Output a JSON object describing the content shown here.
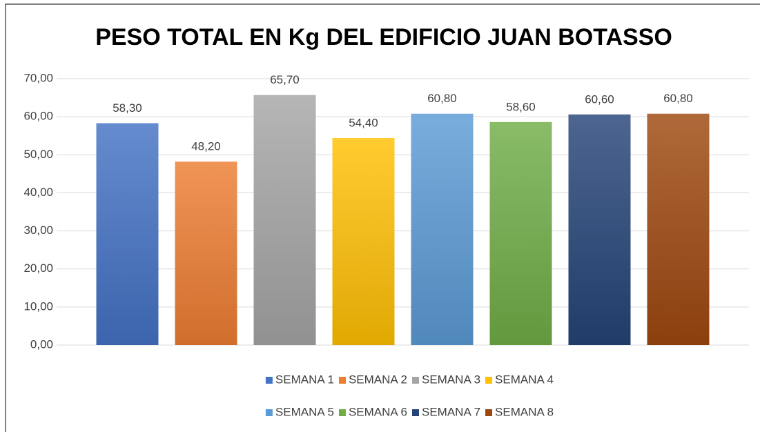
{
  "chart_data": {
    "type": "bar",
    "title": "PESO TOTAL EN Kg DEL EDIFICIO JUAN BOTASSO",
    "categories": [
      null
    ],
    "series": [
      {
        "name": "SEMANA 1",
        "color": "#4472c4",
        "values": [
          58.3
        ],
        "value_labels": [
          "58,30"
        ]
      },
      {
        "name": "SEMANA 2",
        "color": "#ed7d31",
        "values": [
          48.2
        ],
        "value_labels": [
          "48,20"
        ]
      },
      {
        "name": "SEMANA 3",
        "color": "#a5a5a5",
        "values": [
          65.7
        ],
        "value_labels": [
          "65,70"
        ]
      },
      {
        "name": "SEMANA 4",
        "color": "#ffc000",
        "values": [
          54.4
        ],
        "value_labels": [
          "54,40"
        ]
      },
      {
        "name": "SEMANA 5",
        "color": "#5b9bd5",
        "values": [
          60.8
        ],
        "value_labels": [
          "60,80"
        ]
      },
      {
        "name": "SEMANA 6",
        "color": "#70ad47",
        "values": [
          58.6
        ],
        "value_labels": [
          "58,60"
        ]
      },
      {
        "name": "SEMANA 7",
        "color": "#264478",
        "values": [
          60.6
        ],
        "value_labels": [
          "60,60"
        ]
      },
      {
        "name": "SEMANA 8",
        "color": "#9e480e",
        "values": [
          60.8
        ],
        "value_labels": [
          "60,80"
        ]
      }
    ],
    "ylim": [
      0,
      70
    ],
    "yticks": [
      {
        "value": 0,
        "label": "0,00"
      },
      {
        "value": 10,
        "label": "10,00"
      },
      {
        "value": 20,
        "label": "20,00"
      },
      {
        "value": 30,
        "label": "30,00"
      },
      {
        "value": 40,
        "label": "40,00"
      },
      {
        "value": 50,
        "label": "50,00"
      },
      {
        "value": 60,
        "label": "60,00"
      },
      {
        "value": 70,
        "label": "70,00"
      }
    ],
    "grid": true,
    "legend": "bottom"
  }
}
